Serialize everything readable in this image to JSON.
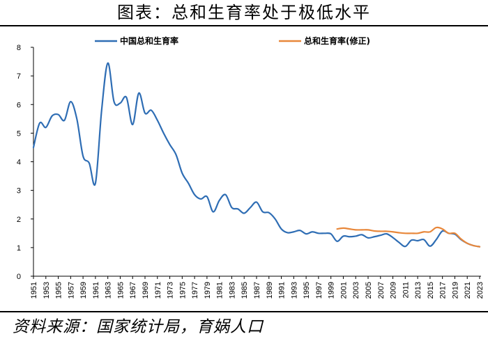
{
  "header": {
    "title": "图表：总和生育率处于极低水平"
  },
  "footer": {
    "source": "资料来源：国家统计局，育娲人口"
  },
  "chart_data": {
    "type": "line",
    "title": "图表：总和生育率处于极低水平",
    "xlabel": "",
    "ylabel": "",
    "ylim": [
      0,
      8
    ],
    "xlim": [
      1951,
      2023
    ],
    "yticks": [
      "0",
      "1",
      "2",
      "3",
      "4",
      "5",
      "6",
      "7",
      "8"
    ],
    "xticks": [
      "1951",
      "1953",
      "1955",
      "1957",
      "1959",
      "1961",
      "1963",
      "1965",
      "1967",
      "1969",
      "1971",
      "1973",
      "1975",
      "1977",
      "1979",
      "1981",
      "1983",
      "1985",
      "1987",
      "1989",
      "1991",
      "1993",
      "1995",
      "1997",
      "1999",
      "2001",
      "2003",
      "2005",
      "2007",
      "2009",
      "2011",
      "2013",
      "2015",
      "2017",
      "2019",
      "2021",
      "2023"
    ],
    "grid": false,
    "legend_position": "top",
    "series": [
      {
        "name": "中国总和生育率",
        "color": "#2E6DB4",
        "x": [
          1951,
          1952,
          1953,
          1954,
          1955,
          1956,
          1957,
          1958,
          1959,
          1960,
          1961,
          1962,
          1963,
          1964,
          1965,
          1966,
          1967,
          1968,
          1969,
          1970,
          1971,
          1972,
          1973,
          1974,
          1975,
          1976,
          1977,
          1978,
          1979,
          1980,
          1981,
          1982,
          1983,
          1984,
          1985,
          1986,
          1987,
          1988,
          1989,
          1990,
          1991,
          1992,
          1993,
          1994,
          1995,
          1996,
          1997,
          1998,
          1999,
          2000,
          2001,
          2002,
          2003,
          2004,
          2005,
          2006,
          2007,
          2008,
          2009,
          2010,
          2011,
          2012,
          2013,
          2014,
          2015,
          2016,
          2017,
          2018,
          2019,
          2020,
          2021,
          2022,
          2023
        ],
        "values": [
          4.5,
          5.35,
          5.2,
          5.6,
          5.65,
          5.45,
          6.1,
          5.5,
          4.2,
          3.95,
          3.25,
          5.8,
          7.45,
          6.1,
          6.05,
          6.25,
          5.3,
          6.4,
          5.7,
          5.8,
          5.45,
          5.0,
          4.6,
          4.25,
          3.6,
          3.25,
          2.85,
          2.7,
          2.78,
          2.25,
          2.65,
          2.85,
          2.4,
          2.35,
          2.2,
          2.4,
          2.59,
          2.25,
          2.22,
          2.0,
          1.65,
          1.52,
          1.55,
          1.6,
          1.48,
          1.55,
          1.5,
          1.5,
          1.48,
          1.22,
          1.4,
          1.38,
          1.4,
          1.45,
          1.34,
          1.38,
          1.43,
          1.48,
          1.35,
          1.18,
          1.04,
          1.26,
          1.24,
          1.28,
          1.05,
          1.28,
          1.58,
          1.5,
          1.47,
          1.28,
          1.15,
          1.07,
          1.03
        ]
      },
      {
        "name": "总和生育率(修正)",
        "color": "#E8873A",
        "x": [
          2000,
          2001,
          2002,
          2003,
          2004,
          2005,
          2006,
          2007,
          2008,
          2009,
          2010,
          2011,
          2012,
          2013,
          2014,
          2015,
          2016,
          2017,
          2018,
          2019,
          2020,
          2021,
          2022,
          2023
        ],
        "values": [
          1.65,
          1.68,
          1.65,
          1.62,
          1.62,
          1.62,
          1.58,
          1.57,
          1.57,
          1.55,
          1.52,
          1.5,
          1.5,
          1.5,
          1.55,
          1.55,
          1.7,
          1.65,
          1.5,
          1.5,
          1.3,
          1.15,
          1.07,
          1.03
        ]
      }
    ]
  }
}
